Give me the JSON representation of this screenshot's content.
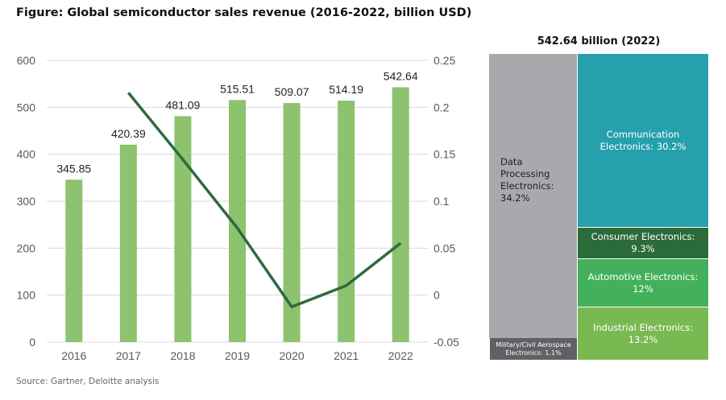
{
  "title": "Figure: Global semiconductor sales revenue (2016-2022, billion USD)",
  "source": "Source: Gartner, Deloitte analysis",
  "chart_data": [
    {
      "type": "bar+line",
      "categories": [
        "2016",
        "2017",
        "2018",
        "2019",
        "2020",
        "2021",
        "2022"
      ],
      "series": [
        {
          "type": "bar",
          "axis": "left",
          "values": [
            345.85,
            420.39,
            481.09,
            515.51,
            509.07,
            514.19,
            542.64
          ],
          "labels": [
            "345.85",
            "420.39",
            "481.09",
            "515.51",
            "509.07",
            "514.19",
            "542.64"
          ],
          "color": "#8dc26f"
        },
        {
          "type": "line",
          "axis": "right",
          "values": [
            null,
            0.2155,
            0.1444,
            0.0715,
            -0.0125,
            0.0101,
            0.0553
          ],
          "color": "#2e6b3d"
        }
      ],
      "ylim_left": [
        0,
        600
      ],
      "yticks_left": [
        "0",
        "100",
        "200",
        "300",
        "400",
        "500",
        "600"
      ],
      "ylim_right": [
        -0.05,
        0.25
      ],
      "yticks_right": [
        "-0.05",
        "0",
        "0.05",
        "0.1",
        "0.15",
        "0.2",
        "0.25"
      ],
      "grid": true
    },
    {
      "type": "treemap",
      "title": "542.64 billion (2022)",
      "items": [
        {
          "label": "Data Processing Electronics: 34.2%",
          "value": 34.2,
          "color": "#a7a9ac"
        },
        {
          "label": "Communication Electronics: 30.2%",
          "value": 30.2,
          "color": "#26a0ad"
        },
        {
          "label": "Consumer Electronics: 9.3%",
          "value": 9.3,
          "color": "#2b6b3a"
        },
        {
          "label": "Automotive Electronics: 12%",
          "value": 12,
          "color": "#43b05c"
        },
        {
          "label": "Industrial Electronics: 13.2%",
          "value": 13.2,
          "color": "#7ab852"
        },
        {
          "label": "Military/Civil Aerospace Electronics: 1.1%",
          "value": 1.1,
          "color": "#5f6166"
        }
      ]
    }
  ]
}
